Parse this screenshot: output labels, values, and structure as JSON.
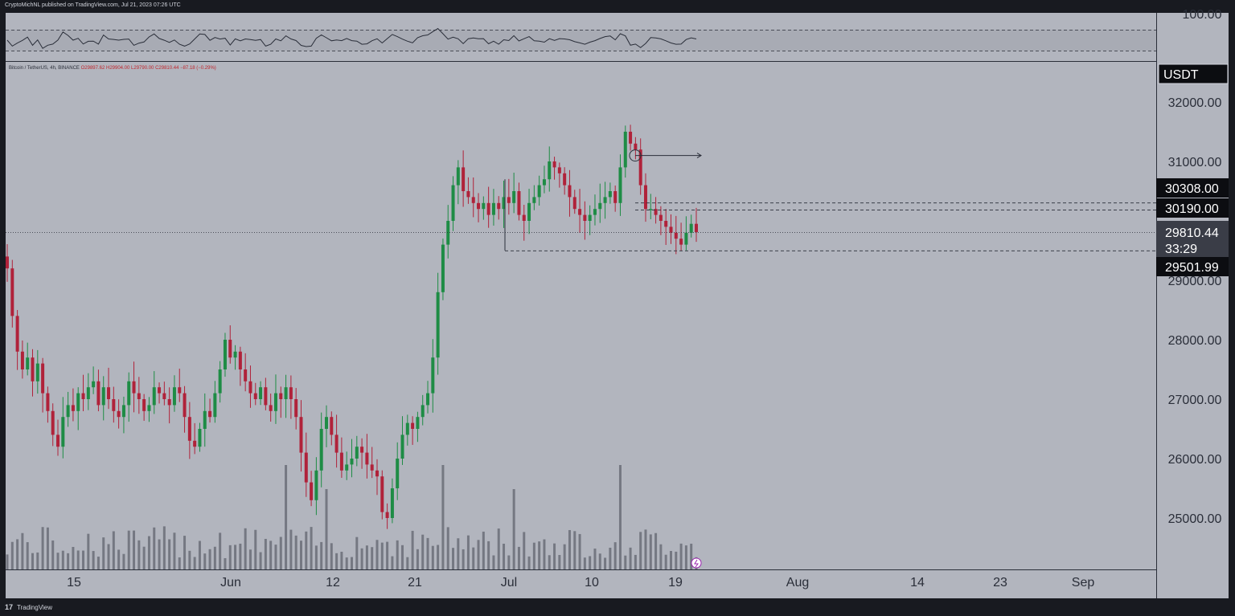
{
  "header": {
    "publisher": "CryptoMichNL published on TradingView.com, Jul 21, 2023 07:26 UTC"
  },
  "symbol": {
    "name": "Bitcoin / TetherUS, 4h, BINANCE",
    "open": "O29897.62",
    "high": "H29904.00",
    "low": "L29790.00",
    "close": "C29810.44",
    "change": "−87.18 (−0.29%)"
  },
  "currency": "USDT",
  "footer": {
    "brand": "TradingView",
    "logo": "17"
  },
  "rsi": {
    "level_label": "100.00"
  },
  "chart_data": {
    "type": "candlestick",
    "x_ticks": [
      "15",
      "Jun",
      "12",
      "21",
      "Jul",
      "10",
      "19",
      "Aug",
      "14",
      "23",
      "Sep"
    ],
    "y_ticks": [
      "32000.00",
      "31000.00",
      "28000.00",
      "27000.00",
      "26000.00",
      "25000.00"
    ],
    "ylim": [
      24500,
      32500
    ],
    "price_labels": [
      {
        "value": "30308.00",
        "style": "dark"
      },
      {
        "value": "30190.00",
        "style": "dark"
      },
      {
        "value": "29810.44",
        "style": "current",
        "countdown": "33:29"
      },
      {
        "value": "29501.99",
        "style": "dark"
      }
    ],
    "closes": [
      29200,
      28400,
      27800,
      27500,
      27700,
      27300,
      27600,
      27100,
      26800,
      26400,
      26200,
      26700,
      26900,
      26800,
      27100,
      27000,
      27200,
      27300,
      26900,
      27200,
      27000,
      26800,
      26700,
      26900,
      27300,
      27100,
      27000,
      26800,
      26900,
      27200,
      27100,
      27000,
      26900,
      27200,
      27100,
      26700,
      26300,
      26200,
      26500,
      26800,
      26700,
      27100,
      27500,
      28000,
      27700,
      27800,
      27500,
      27300,
      27100,
      27000,
      27200,
      26900,
      26800,
      27100,
      27000,
      27200,
      27000,
      26700,
      26100,
      25600,
      25300,
      25800,
      26500,
      26700,
      26400,
      26100,
      25800,
      25900,
      26000,
      26200,
      26100,
      25900,
      25800,
      25700,
      25100,
      25000,
      25500,
      26000,
      26400,
      26600,
      26500,
      26700,
      26900,
      27100,
      27700,
      28800,
      29600,
      30000,
      30600,
      30900,
      30500,
      30400,
      30300,
      30200,
      30300,
      30100,
      30300,
      30200,
      30400,
      30300,
      30500,
      30100,
      30000,
      30300,
      30400,
      30600,
      30700,
      31000,
      30900,
      30800,
      30600,
      30400,
      30200,
      30100,
      30000,
      30100,
      30200,
      30300,
      30400,
      30500,
      30300,
      30900,
      31500,
      31300,
      31200,
      30600,
      30200,
      30200,
      30100,
      30000,
      29900,
      29800,
      29700,
      29600,
      29800,
      29950,
      29810
    ],
    "volume_series": "relative trading volume bars along the bottom",
    "annotations": [
      {
        "type": "horizontal-ray",
        "level": 31100,
        "from": "Jul 14"
      },
      {
        "type": "horizontal-line",
        "level": 30308
      },
      {
        "type": "horizontal-line",
        "level": 30190
      },
      {
        "type": "horizontal-line",
        "level": 29501.99
      }
    ]
  },
  "colors": {
    "up": "#1e8c45",
    "down": "#b0223a",
    "background": "#b2b5be",
    "panel": "#181a20"
  }
}
